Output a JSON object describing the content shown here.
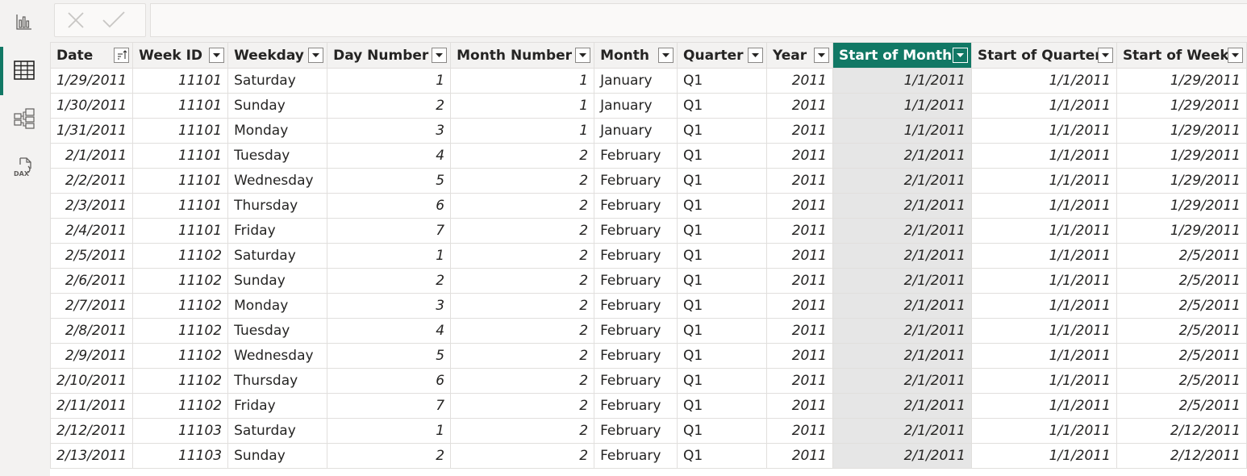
{
  "rail": {
    "items": [
      {
        "name": "report-view-icon",
        "label": "Report"
      },
      {
        "name": "data-view-icon",
        "label": "Data"
      },
      {
        "name": "model-view-icon",
        "label": "Model"
      },
      {
        "name": "dax-query-view-icon",
        "label": "DAX"
      }
    ],
    "active": "data-view-icon",
    "accent": "#117865"
  },
  "formula_bar": {
    "value": ""
  },
  "table": {
    "selected_column": "Start of Month",
    "columns": [
      {
        "label": "Date",
        "align": "r",
        "sort_icon": true
      },
      {
        "label": "Week ID",
        "align": "r"
      },
      {
        "label": "Weekday",
        "align": "l"
      },
      {
        "label": "Day Number",
        "align": "r"
      },
      {
        "label": "Month Number",
        "align": "r"
      },
      {
        "label": "Month",
        "align": "l"
      },
      {
        "label": "Quarter",
        "align": "l"
      },
      {
        "label": "Year",
        "align": "r"
      },
      {
        "label": "Start of Month",
        "align": "r"
      },
      {
        "label": "Start of Quarter",
        "align": "r"
      },
      {
        "label": "Start of Week",
        "align": "r"
      }
    ],
    "rows": [
      [
        "1/29/2011",
        "11101",
        "Saturday",
        "1",
        "1",
        "January",
        "Q1",
        "2011",
        "1/1/2011",
        "1/1/2011",
        "1/29/2011"
      ],
      [
        "1/30/2011",
        "11101",
        "Sunday",
        "2",
        "1",
        "January",
        "Q1",
        "2011",
        "1/1/2011",
        "1/1/2011",
        "1/29/2011"
      ],
      [
        "1/31/2011",
        "11101",
        "Monday",
        "3",
        "1",
        "January",
        "Q1",
        "2011",
        "1/1/2011",
        "1/1/2011",
        "1/29/2011"
      ],
      [
        "2/1/2011",
        "11101",
        "Tuesday",
        "4",
        "2",
        "February",
        "Q1",
        "2011",
        "2/1/2011",
        "1/1/2011",
        "1/29/2011"
      ],
      [
        "2/2/2011",
        "11101",
        "Wednesday",
        "5",
        "2",
        "February",
        "Q1",
        "2011",
        "2/1/2011",
        "1/1/2011",
        "1/29/2011"
      ],
      [
        "2/3/2011",
        "11101",
        "Thursday",
        "6",
        "2",
        "February",
        "Q1",
        "2011",
        "2/1/2011",
        "1/1/2011",
        "1/29/2011"
      ],
      [
        "2/4/2011",
        "11101",
        "Friday",
        "7",
        "2",
        "February",
        "Q1",
        "2011",
        "2/1/2011",
        "1/1/2011",
        "1/29/2011"
      ],
      [
        "2/5/2011",
        "11102",
        "Saturday",
        "1",
        "2",
        "February",
        "Q1",
        "2011",
        "2/1/2011",
        "1/1/2011",
        "2/5/2011"
      ],
      [
        "2/6/2011",
        "11102",
        "Sunday",
        "2",
        "2",
        "February",
        "Q1",
        "2011",
        "2/1/2011",
        "1/1/2011",
        "2/5/2011"
      ],
      [
        "2/7/2011",
        "11102",
        "Monday",
        "3",
        "2",
        "February",
        "Q1",
        "2011",
        "2/1/2011",
        "1/1/2011",
        "2/5/2011"
      ],
      [
        "2/8/2011",
        "11102",
        "Tuesday",
        "4",
        "2",
        "February",
        "Q1",
        "2011",
        "2/1/2011",
        "1/1/2011",
        "2/5/2011"
      ],
      [
        "2/9/2011",
        "11102",
        "Wednesday",
        "5",
        "2",
        "February",
        "Q1",
        "2011",
        "2/1/2011",
        "1/1/2011",
        "2/5/2011"
      ],
      [
        "2/10/2011",
        "11102",
        "Thursday",
        "6",
        "2",
        "February",
        "Q1",
        "2011",
        "2/1/2011",
        "1/1/2011",
        "2/5/2011"
      ],
      [
        "2/11/2011",
        "11102",
        "Friday",
        "7",
        "2",
        "February",
        "Q1",
        "2011",
        "2/1/2011",
        "1/1/2011",
        "2/5/2011"
      ],
      [
        "2/12/2011",
        "11103",
        "Saturday",
        "1",
        "2",
        "February",
        "Q1",
        "2011",
        "2/1/2011",
        "1/1/2011",
        "2/12/2011"
      ],
      [
        "2/13/2011",
        "11103",
        "Sunday",
        "2",
        "2",
        "February",
        "Q1",
        "2011",
        "2/1/2011",
        "1/1/2011",
        "2/12/2011"
      ]
    ]
  }
}
